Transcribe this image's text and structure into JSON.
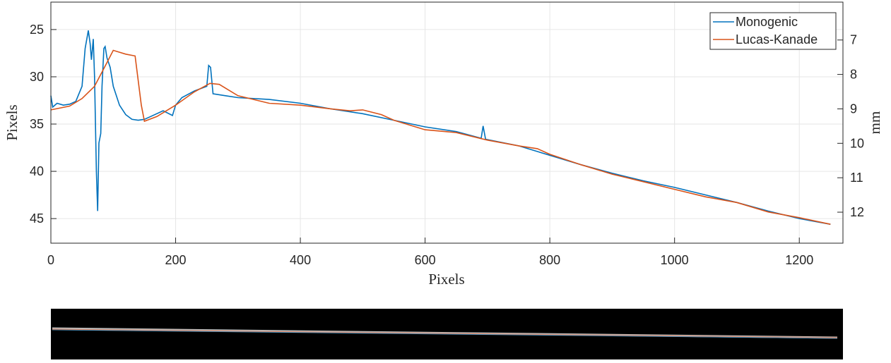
{
  "chart_data": {
    "type": "line",
    "xlabel": "Pixels",
    "ylabel": "Pixels",
    "y2label": "mm",
    "xlim": [
      0,
      1270
    ],
    "ylim": [
      22.1,
      47.6
    ],
    "y2lim": [
      5.9,
      12.9
    ],
    "y_reversed": true,
    "y2_reversed": true,
    "xticks": [
      0,
      200,
      400,
      600,
      800,
      1000,
      1200
    ],
    "yticks": [
      25,
      30,
      35,
      40,
      45
    ],
    "y2ticks": [
      7,
      8,
      9,
      10,
      11,
      12
    ],
    "grid": true,
    "legend": "upper right",
    "series": [
      {
        "name": "Monogenic",
        "color": "#0072bd",
        "x": [
          0,
          3,
          10,
          20,
          30,
          40,
          50,
          55,
          60,
          63,
          65,
          68,
          70,
          73,
          75,
          77,
          80,
          82,
          85,
          87,
          90,
          95,
          100,
          110,
          120,
          130,
          140,
          150,
          160,
          180,
          195,
          200,
          210,
          230,
          250,
          253,
          256,
          260,
          280,
          300,
          350,
          400,
          450,
          500,
          550,
          600,
          650,
          690,
          693,
          697,
          750,
          800,
          850,
          900,
          950,
          1000,
          1050,
          1100,
          1150,
          1200,
          1250
        ],
        "values": [
          32,
          33.2,
          32.8,
          33,
          32.9,
          32.6,
          31,
          27,
          25.1,
          26.5,
          28.2,
          26,
          30,
          40,
          44.2,
          37,
          36,
          31,
          27,
          26.8,
          28,
          29,
          31,
          33,
          34,
          34.5,
          34.6,
          34.5,
          34.2,
          33.6,
          34.1,
          33,
          32.2,
          31.5,
          31,
          28.8,
          29,
          31.8,
          32,
          32.2,
          32.4,
          32.8,
          33.4,
          33.9,
          34.6,
          35.3,
          35.8,
          36.5,
          35.2,
          36.6,
          37.3,
          38.3,
          39.3,
          40.2,
          41,
          41.7,
          42.5,
          43.3,
          44.2,
          45,
          45.6
        ]
      },
      {
        "name": "Lucas-Kanade",
        "color": "#d95319",
        "x": [
          0,
          30,
          50,
          70,
          90,
          100,
          110,
          120,
          135,
          145,
          150,
          170,
          200,
          230,
          255,
          270,
          300,
          350,
          400,
          450,
          480,
          500,
          530,
          550,
          600,
          650,
          700,
          750,
          780,
          800,
          850,
          900,
          950,
          1000,
          1050,
          1100,
          1150,
          1200,
          1250
        ],
        "values": [
          33.5,
          33.1,
          32.3,
          31,
          28.5,
          27.2,
          27.4,
          27.6,
          27.8,
          33,
          34.7,
          34.2,
          33,
          31.6,
          30.7,
          30.8,
          32,
          32.8,
          33,
          33.4,
          33.6,
          33.5,
          34,
          34.6,
          35.6,
          35.9,
          36.7,
          37.3,
          37.6,
          38.2,
          39.3,
          40.3,
          41.1,
          41.9,
          42.7,
          43.3,
          44.3,
          44.9,
          45.6
        ]
      }
    ]
  }
}
